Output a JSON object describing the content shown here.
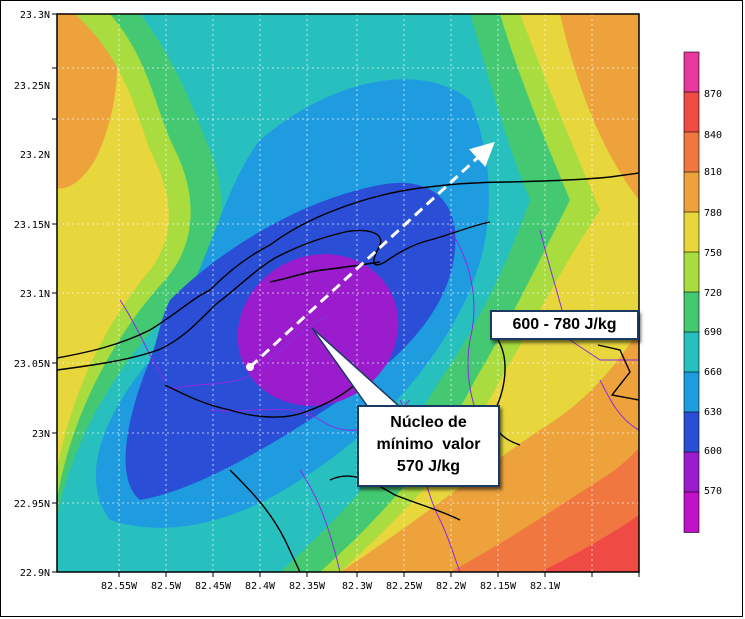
{
  "map": {
    "lat_ticks": [
      "23.3N",
      "23.25N",
      "23.2N",
      "23.15N",
      "23.1N",
      "23.05N",
      "23N",
      "22.95N",
      "22.9N"
    ],
    "lon_ticks": [
      "82.55W",
      "82.5W",
      "82.45W",
      "82.4W",
      "82.35W",
      "82.3W",
      "82.25W",
      "82.2W",
      "82.15W",
      "82.1W"
    ],
    "colorbar": {
      "labels": [
        "870",
        "840",
        "810",
        "780",
        "750",
        "720",
        "690",
        "660",
        "630",
        "600",
        "570"
      ],
      "colors": [
        "#e8379e",
        "#f04a45",
        "#f07840",
        "#eda23c",
        "#e7d63c",
        "#a9dc3e",
        "#44c972",
        "#28bfbf",
        "#1f9ce0",
        "#2a4fd6",
        "#9a1ccc",
        "#c012c8"
      ],
      "units": "J/kg"
    },
    "annotations": {
      "range_label": "600 - 780 J/kg",
      "core_label_1": "Núcleo de",
      "core_label_2": "mínimo  valor",
      "core_label_3": "570 J/kg"
    }
  }
}
